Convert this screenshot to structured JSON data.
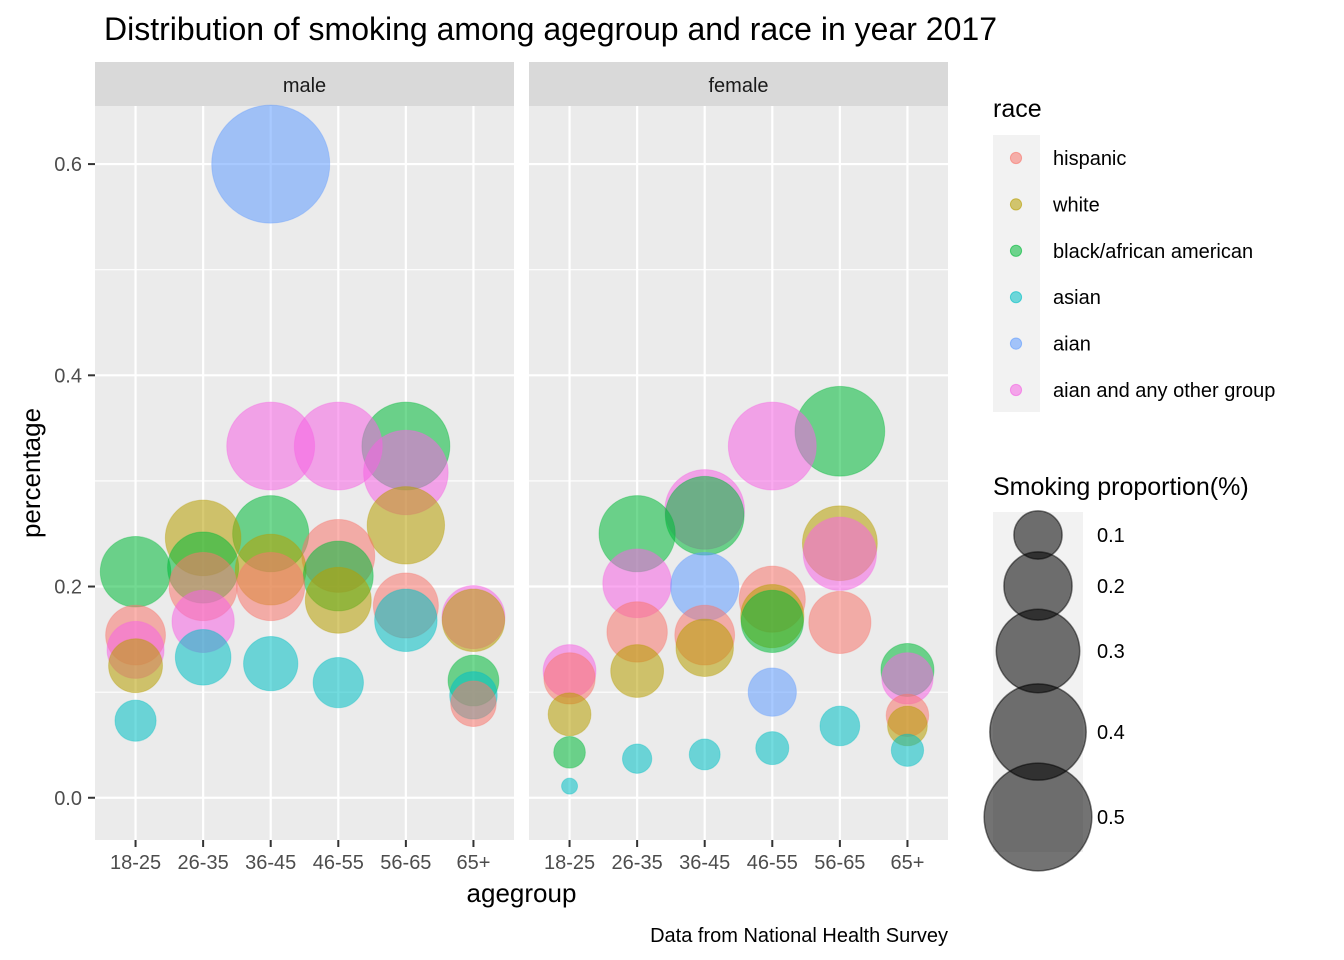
{
  "chart_data": {
    "type": "scatter",
    "title": "Distribution of smoking among agegroup and race in year 2017",
    "xlabel": "agegroup",
    "ylabel": "percentage",
    "caption": "Data from National Health Survey",
    "categories": [
      "18-25",
      "26-35",
      "36-45",
      "46-55",
      "56-65",
      "65+"
    ],
    "ylim": [
      -0.04,
      0.655
    ],
    "yticks": [
      0.0,
      0.2,
      0.4,
      0.6
    ],
    "ytick_labels": [
      "0.0",
      "0.2",
      "0.4",
      "0.6"
    ],
    "grid": true,
    "facets": [
      "male",
      "female"
    ],
    "legend_position": "right",
    "color_legend": {
      "title": "race",
      "entries": [
        {
          "name": "hispanic",
          "color": "#F8766D"
        },
        {
          "name": "white",
          "color": "#B79F00"
        },
        {
          "name": "black/african american",
          "color": "#00BA38"
        },
        {
          "name": "asian",
          "color": "#00BFC4"
        },
        {
          "name": "aian",
          "color": "#619CFF"
        },
        {
          "name": "aian and any other group",
          "color": "#F564E3"
        }
      ]
    },
    "size_legend": {
      "title": "Smoking proportion(%)",
      "values": [
        0.1,
        0.2,
        0.3,
        0.4,
        0.5
      ],
      "labels": [
        "0.1",
        "0.2",
        "0.3",
        "0.4",
        "0.5"
      ]
    },
    "series": [
      {
        "facet": "male",
        "name": "hispanic",
        "values": [
          0.154,
          0.2,
          0.2,
          0.229,
          0.182,
          0.089
        ]
      },
      {
        "facet": "male",
        "name": "white",
        "values": [
          0.125,
          0.246,
          0.216,
          0.187,
          0.258,
          0.168
        ]
      },
      {
        "facet": "male",
        "name": "black/african american",
        "values": [
          0.214,
          0.218,
          0.25,
          0.21,
          0.333,
          0.111
        ]
      },
      {
        "facet": "male",
        "name": "asian",
        "values": [
          0.073,
          0.133,
          0.127,
          0.109,
          0.168,
          0.097
        ]
      },
      {
        "facet": "male",
        "name": "aian",
        "values": [
          null,
          null,
          0.6,
          null,
          null,
          null
        ]
      },
      {
        "facet": "male",
        "name": "aian and any other group",
        "values": [
          0.14,
          0.167,
          0.333,
          0.333,
          0.308,
          0.171
        ]
      },
      {
        "facet": "female",
        "name": "hispanic",
        "values": [
          0.113,
          0.157,
          0.154,
          0.188,
          0.166,
          0.078
        ]
      },
      {
        "facet": "female",
        "name": "white",
        "values": [
          0.079,
          0.12,
          0.142,
          0.172,
          0.241,
          0.068
        ]
      },
      {
        "facet": "female",
        "name": "black/african american",
        "values": [
          0.043,
          0.25,
          0.267,
          0.167,
          0.347,
          0.121
        ]
      },
      {
        "facet": "female",
        "name": "asian",
        "values": [
          0.011,
          0.037,
          0.041,
          0.047,
          0.068,
          0.045
        ]
      },
      {
        "facet": "female",
        "name": "aian",
        "values": [
          null,
          null,
          0.2,
          0.1,
          null,
          null
        ]
      },
      {
        "facet": "female",
        "name": "aian and any other group",
        "values": [
          0.12,
          0.203,
          0.273,
          0.333,
          0.231,
          0.113
        ]
      }
    ]
  }
}
